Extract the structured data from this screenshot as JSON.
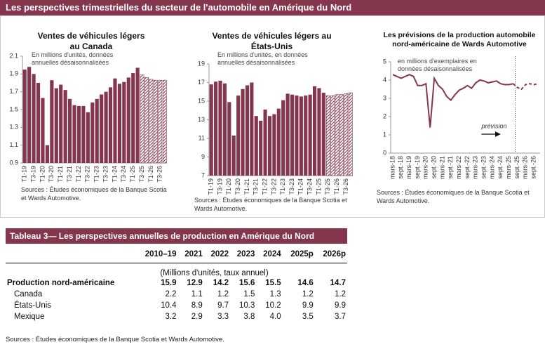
{
  "header": {
    "title": "Les perspectives trimestrielles du secteur de l'automobile en Amérique du Nord"
  },
  "chart_data": [
    {
      "type": "bar",
      "title": "Ventes de véhicules légers au Canada",
      "note": "En millions d'unités, données annuelles désaisonnalisées",
      "source": "Sources : Études économiques de la Banque Scotia et Wards Automotive.",
      "categories": [
        "T1-19",
        null,
        "T3-19",
        null,
        "T1-20",
        null,
        "T3-20",
        null,
        "T1-21",
        null,
        "T3-21",
        null,
        "T1-22",
        null,
        "T3-22",
        null,
        "T1-23",
        null,
        "T3-23",
        null,
        "T1-24",
        null,
        "T3-24",
        null,
        "T1-25",
        null,
        "T3-25",
        null,
        "T1-26",
        null,
        "T3-26",
        null
      ],
      "values": [
        1.95,
        1.98,
        1.9,
        1.8,
        1.63,
        1.1,
        1.83,
        1.74,
        1.78,
        1.72,
        1.62,
        1.55,
        1.54,
        1.54,
        1.47,
        1.58,
        1.62,
        1.67,
        1.7,
        1.75,
        1.85,
        1.79,
        1.81,
        1.86,
        1.91,
        1.97,
        1.89,
        1.86,
        1.84,
        1.83,
        1.83,
        1.83
      ],
      "hatched": [
        false,
        false,
        false,
        false,
        false,
        false,
        false,
        false,
        false,
        false,
        false,
        false,
        false,
        false,
        false,
        false,
        false,
        false,
        false,
        false,
        false,
        false,
        false,
        false,
        false,
        false,
        true,
        true,
        true,
        true,
        true,
        true
      ],
      "color": "#84364d",
      "ylim": [
        0.9,
        2.1
      ],
      "yticks": [
        0.9,
        1.1,
        1.3,
        1.5,
        1.7,
        1.9,
        2.1
      ]
    },
    {
      "type": "bar",
      "title": "Ventes de véhicules légers au États-Unis",
      "note": "En millions d'unités, en données annuelles désaisonnalisées",
      "source": "Sources : Études économiques de la Banque Scotia et Wards Automotive.",
      "categories": [
        "T1-19",
        null,
        "T3-19",
        null,
        "T1-20",
        null,
        "T3-20",
        null,
        "T1-21",
        null,
        "T3-21",
        null,
        "T1-22",
        null,
        "T3-22",
        null,
        "T1-23",
        null,
        "T3-23",
        null,
        "T1-24",
        null,
        "T3-24",
        null,
        "T1-25",
        null,
        "T3-25",
        null,
        "T1-26",
        null,
        "T3-26",
        null
      ],
      "values": [
        16.8,
        17.1,
        17.2,
        16.9,
        14.9,
        11.3,
        15.6,
        16.3,
        16.7,
        17.0,
        13.4,
        12.9,
        14.1,
        13.4,
        13.6,
        14.2,
        15.1,
        15.8,
        15.7,
        15.6,
        15.5,
        15.6,
        15.7,
        16.6,
        16.4,
        15.9,
        15.6,
        15.6,
        15.7,
        15.7,
        15.8,
        15.9
      ],
      "hatched": [
        false,
        false,
        false,
        false,
        false,
        false,
        false,
        false,
        false,
        false,
        false,
        false,
        false,
        false,
        false,
        false,
        false,
        false,
        false,
        false,
        false,
        false,
        false,
        false,
        false,
        false,
        true,
        true,
        true,
        true,
        true,
        true
      ],
      "color": "#84364d",
      "ylim": [
        7,
        19
      ],
      "yticks": [
        7,
        9,
        11,
        13,
        15,
        17,
        19
      ]
    },
    {
      "type": "line",
      "title": "Les prévisions de la production automobile nord-américaine de Wards Automotive",
      "note": "en millions d'exemplaires en données désaisonnalisées",
      "source": "Sources : Études économiques de la Banque Scotia et Wards Automotive.",
      "annotation": "prévision",
      "categories": [
        "mars-18",
        null,
        "sept.-18",
        null,
        "mars-19",
        null,
        "sept.-19",
        null,
        "mars-20",
        null,
        "sept.-20",
        null,
        "mars-21",
        null,
        "sept.-21",
        null,
        "mars-22",
        null,
        "sept.-22",
        null,
        "mars-23",
        null,
        "sept.-23",
        null,
        "mars-24",
        null,
        "sept.-24",
        null,
        "mars-25",
        null,
        "sept.-25",
        null,
        "mars-26",
        null,
        "sept.-26",
        null
      ],
      "values": [
        4.3,
        4.2,
        4.1,
        4.2,
        4.3,
        4.2,
        3.7,
        3.7,
        3.8,
        1.4,
        4.1,
        3.7,
        3.5,
        3.1,
        2.9,
        3.2,
        3.45,
        3.55,
        3.7,
        3.55,
        3.85,
        4.0,
        3.95,
        3.85,
        3.9,
        3.95,
        3.8,
        3.75,
        3.75,
        3.8,
        3.6,
        3.5,
        3.75,
        3.8,
        3.75,
        3.8
      ],
      "dashed": [
        false,
        false,
        false,
        false,
        false,
        false,
        false,
        false,
        false,
        false,
        false,
        false,
        false,
        false,
        false,
        false,
        false,
        false,
        false,
        false,
        false,
        false,
        false,
        false,
        false,
        false,
        false,
        false,
        false,
        false,
        true,
        true,
        true,
        true,
        true,
        true
      ],
      "color": "#84364d",
      "ylim": [
        0,
        5
      ],
      "yticks": [
        0,
        1,
        2,
        3,
        4,
        5
      ]
    }
  ],
  "table": {
    "title": "Tableau 3— Les perspectives annuelles de production en Amérique du Nord",
    "columns": [
      "2010–19",
      "2021",
      "2022",
      "2023",
      "2024",
      "2025p",
      "2026p"
    ],
    "units": "(Millions d'unités, taux annuel)",
    "rows": [
      [
        "Production nord-américaine",
        "15.9",
        "12.9",
        "14.2",
        "15.6",
        "15.5",
        "14.6",
        "14.7"
      ],
      [
        "Canada",
        "2.2",
        "1.1",
        "1.2",
        "1.5",
        "1.3",
        "1.2",
        "1.2"
      ],
      [
        "États-Unis",
        "10.4",
        "8.9",
        "9.7",
        "10.3",
        "10.2",
        "9.9",
        "9.9"
      ],
      [
        "Mexique",
        "3.2",
        "2.9",
        "3.3",
        "3.8",
        "4.0",
        "3.5",
        "3.7"
      ]
    ],
    "source": "Sources : Études économiques de la Banque Scotia et Wards Automotive."
  }
}
